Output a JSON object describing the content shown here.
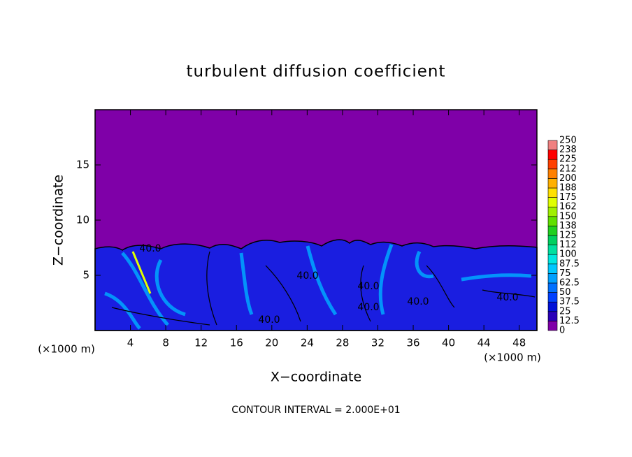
{
  "chart_data": {
    "type": "contour",
    "title": "turbulent diffusion coefficient",
    "xlabel": "X−coordinate",
    "ylabel": "Z−coordinate",
    "xunit": "(×1000 m)",
    "yunit": "(×1000 m)",
    "footer": "CONTOUR INTERVAL = 2.000E+01",
    "xlim": [
      0,
      50
    ],
    "ylim": [
      0,
      20
    ],
    "xticks": [
      4,
      8,
      12,
      16,
      20,
      24,
      28,
      32,
      36,
      40,
      44,
      48
    ],
    "yticks": [
      5,
      10,
      15
    ],
    "contour_labels": [
      "40.0",
      "40.0",
      "40.0",
      "40.0",
      "40.0",
      "40.0",
      "40.0"
    ],
    "colorbar": {
      "levels": [
        0,
        12.5,
        25,
        37.5,
        50,
        62.5,
        75,
        87.5,
        100,
        112,
        125,
        138,
        150,
        162,
        175,
        188,
        200,
        212,
        225,
        238,
        250
      ],
      "colors": [
        "#7f00a8",
        "#2a00b8",
        "#0010d8",
        "#0040ff",
        "#0070ff",
        "#00a0ff",
        "#00c8ff",
        "#00e8e0",
        "#00e0a0",
        "#00d060",
        "#20d020",
        "#60e000",
        "#a0f000",
        "#e0ff00",
        "#ffe000",
        "#ffb000",
        "#ff8000",
        "#ff4000",
        "#ff0000",
        "#f08080"
      ]
    }
  }
}
